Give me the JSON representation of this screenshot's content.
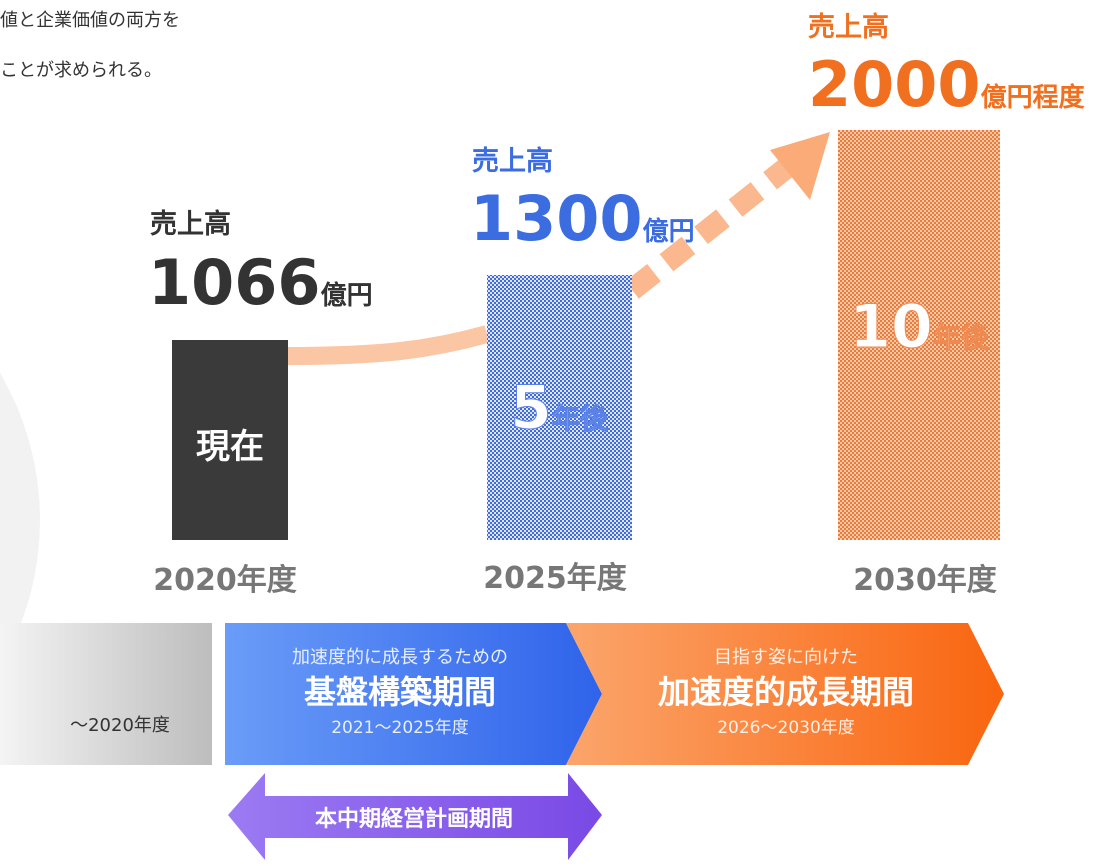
{
  "intro": [
    "値と企業価値の両方を",
    "ことが求められる。"
  ],
  "columns": [
    {
      "label": "売上高",
      "amount": "1066",
      "unit": "億円",
      "bar_label": "現在",
      "year": "2020年度"
    },
    {
      "label": "売上高",
      "amount": "1300",
      "unit": "億円",
      "bar_number": "5",
      "bar_unit": "年後",
      "year": "2025年度"
    },
    {
      "label": "売上高",
      "amount": "2000",
      "unit": "億円程度",
      "bar_number": "10",
      "bar_unit": "年後",
      "year": "2030年度"
    }
  ],
  "phases": [
    {
      "range": "〜2020年度"
    },
    {
      "subtitle": "加速度的に成長するための",
      "title": "基盤構築期間",
      "range": "2021〜2025年度"
    },
    {
      "subtitle": "目指す姿に向けた",
      "title": "加速度的成長期間",
      "range": "2026〜2030年度"
    }
  ],
  "plan": "本中期経営計画期間"
}
